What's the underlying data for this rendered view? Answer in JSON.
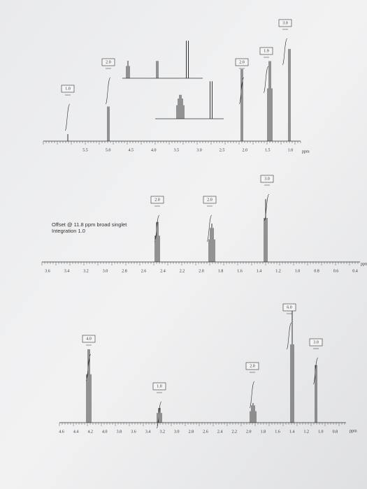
{
  "spectra": [
    {
      "integrations": [
        "1.0",
        "2.0",
        "2.0",
        "1.9",
        "3.0"
      ],
      "axis_ticks": [
        "5.5",
        "5.0",
        "4.5",
        "4.0",
        "3.5",
        "3.0",
        "2.5",
        "2.0",
        "1.5",
        "1.0"
      ],
      "axis_unit": "ppm"
    },
    {
      "note": [
        "Offset @ 11.8 ppm broad singlet",
        "Integration 1.0"
      ],
      "integrations": [
        "2.0",
        "2.0",
        "3.0"
      ],
      "axis_ticks": [
        "3.6",
        "3.4",
        "3.2",
        "3.0",
        "2.8",
        "2.6",
        "2.4",
        "2.2",
        "2.0",
        "1.8",
        "1.6",
        "1.4",
        "1.2",
        "1.0",
        "0.8",
        "0.6",
        "0.4"
      ],
      "axis_unit": "ppm"
    },
    {
      "integrations": [
        "4.0",
        "1.0",
        "2.0",
        "6.0",
        "3.0"
      ],
      "axis_ticks": [
        "4.6",
        "4.4",
        "4.2",
        "4.0",
        "3.8",
        "3.6",
        "3.4",
        "3.2",
        "3.0",
        "2.8",
        "2.6",
        "2.4",
        "2.2",
        "2.0",
        "1.8",
        "1.6",
        "1.4",
        "1.2",
        "1.0",
        "0.8"
      ],
      "axis_unit": "ppm"
    }
  ]
}
